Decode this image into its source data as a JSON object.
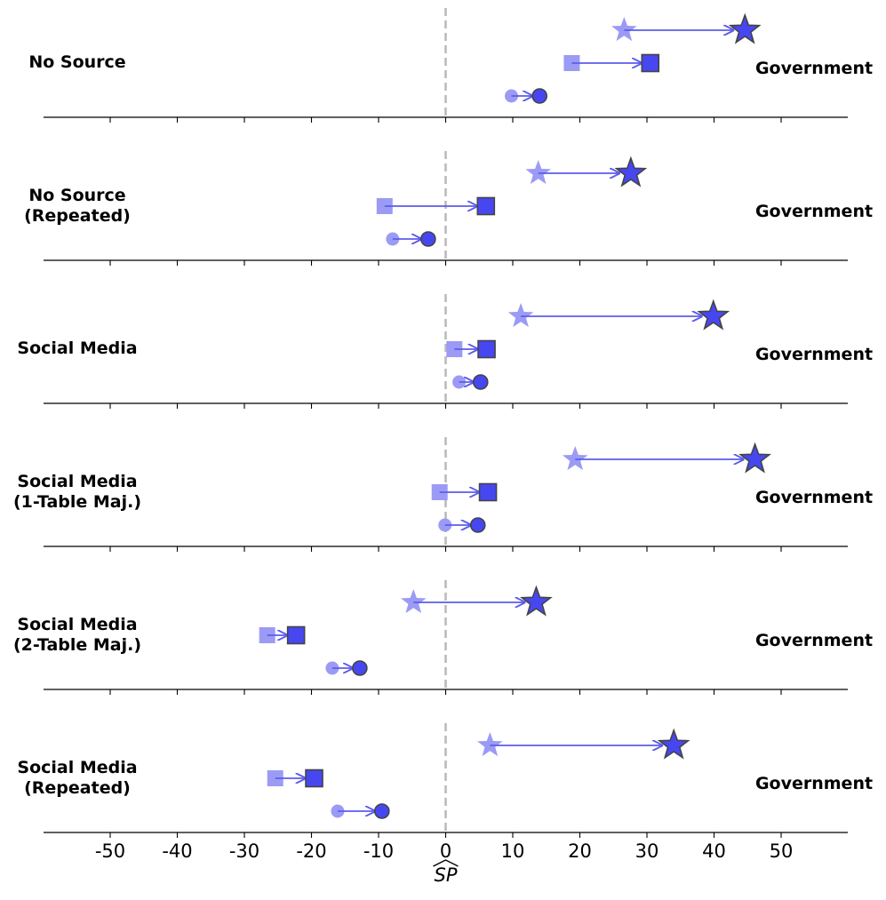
{
  "chart_data": {
    "type": "scatter",
    "title": "",
    "xlabel": "SP",
    "xlim": [
      -60,
      60
    ],
    "xticks": [
      -50,
      -40,
      -30,
      -20,
      -10,
      0,
      10,
      20,
      30,
      40,
      50
    ],
    "xtick_labels": [
      "-50",
      "-40",
      "-30",
      "-20",
      "-10",
      "0",
      "10",
      "20",
      "30",
      "40",
      "50"
    ],
    "reference_line": 0,
    "colors": {
      "before": "#9b9bf5",
      "after": "#4747f2",
      "arrow": "#5c5cec",
      "edge": "#444444",
      "reference": "#bbbbbb"
    },
    "panels": [
      {
        "left_label": [
          "No Source"
        ],
        "right_label": "Government",
        "series": [
          {
            "marker": "star",
            "from": 26.6,
            "to": 44.6
          },
          {
            "marker": "square",
            "from": 18.8,
            "to": 30.5
          },
          {
            "marker": "circle",
            "from": 9.8,
            "to": 14.0
          }
        ]
      },
      {
        "left_label": [
          "No Source",
          "(Repeated)"
        ],
        "right_label": "Government",
        "series": [
          {
            "marker": "star",
            "from": 13.8,
            "to": 27.6
          },
          {
            "marker": "square",
            "from": -9.1,
            "to": 6.0
          },
          {
            "marker": "circle",
            "from": -7.9,
            "to": -2.6
          }
        ]
      },
      {
        "left_label": [
          "Social Media"
        ],
        "right_label": "Government",
        "series": [
          {
            "marker": "star",
            "from": 11.2,
            "to": 39.9
          },
          {
            "marker": "square",
            "from": 1.3,
            "to": 6.1
          },
          {
            "marker": "circle",
            "from": 2.0,
            "to": 5.2
          }
        ]
      },
      {
        "left_label": [
          "Social Media",
          "(1-Table Maj.)"
        ],
        "right_label": "Government",
        "series": [
          {
            "marker": "star",
            "from": 19.3,
            "to": 46.1
          },
          {
            "marker": "square",
            "from": -0.9,
            "to": 6.3
          },
          {
            "marker": "circle",
            "from": -0.1,
            "to": 4.8
          }
        ]
      },
      {
        "left_label": [
          "Social Media",
          "(2-Table Maj.)"
        ],
        "right_label": "Government",
        "series": [
          {
            "marker": "star",
            "from": -4.8,
            "to": 13.5
          },
          {
            "marker": "square",
            "from": -26.6,
            "to": -22.3
          },
          {
            "marker": "circle",
            "from": -16.9,
            "to": -12.8
          }
        ]
      },
      {
        "left_label": [
          "Social Media",
          "(Repeated)"
        ],
        "right_label": "Government",
        "series": [
          {
            "marker": "star",
            "from": 6.6,
            "to": 34.0
          },
          {
            "marker": "square",
            "from": -25.4,
            "to": -19.6
          },
          {
            "marker": "circle",
            "from": -16.1,
            "to": -9.5
          }
        ]
      }
    ]
  }
}
